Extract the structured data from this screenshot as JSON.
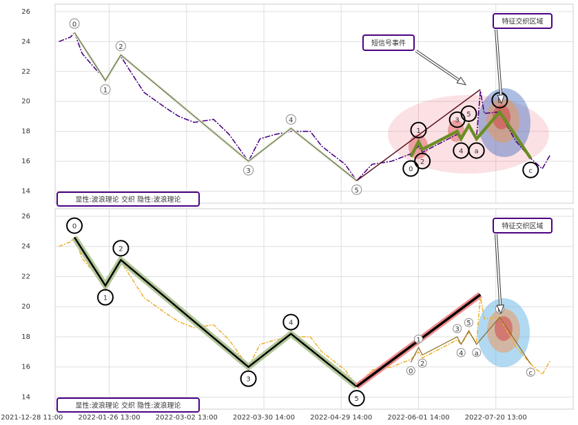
{
  "chart_data": {
    "type": "line",
    "x": [
      7,
      10,
      11,
      13,
      17,
      19,
      23,
      26,
      29,
      35,
      38,
      42,
      47,
      51,
      56,
      59,
      63,
      67,
      72,
      75,
      81,
      84,
      88,
      93,
      98,
      100,
      101,
      107,
      110,
      111,
      113,
      115,
      116,
      117,
      121,
      125,
      129,
      132,
      134
    ],
    "values": [
      24.0,
      24.3,
      24.6,
      23.2,
      22.0,
      21.5,
      23.0,
      21.8,
      20.6,
      19.5,
      19.0,
      18.6,
      18.8,
      17.8,
      16.0,
      17.5,
      17.8,
      18.0,
      18.0,
      17.0,
      15.8,
      14.7,
      15.8,
      16.0,
      16.5,
      17.0,
      16.6,
      17.4,
      17.8,
      17.5,
      18.3,
      17.6,
      20.7,
      19.2,
      19.3,
      17.4,
      16.2,
      15.5,
      16.4
    ],
    "xlim": [
      6,
      140
    ],
    "xticks": [
      {
        "value": 0,
        "label": "2021-12-28 11:00"
      },
      {
        "value": 20,
        "label": "2022-01-26 13:00"
      },
      {
        "value": 40,
        "label": "2022-03-02 13:00"
      },
      {
        "value": 60,
        "label": "2022-03-30 14:00"
      },
      {
        "value": 80,
        "label": "2022-04-29 14:00"
      },
      {
        "value": 100,
        "label": "2022-06-01 14:00"
      },
      {
        "value": 120,
        "label": "2022-07-20 13:00"
      }
    ],
    "ylim": [
      13.2,
      26.5
    ],
    "yticks": [
      14,
      16,
      18,
      20,
      22,
      24,
      26
    ],
    "grid": true,
    "waves": {
      "names": [
        "0",
        "1",
        "2",
        "3",
        "4",
        "5"
      ],
      "x": [
        11,
        19,
        23,
        56,
        67,
        84
      ],
      "values": [
        24.6,
        21.4,
        23.1,
        16.0,
        18.2,
        14.7
      ]
    },
    "short_waves": {
      "names": [
        "0",
        "1",
        "2",
        "3",
        "4",
        "5",
        "a",
        "b",
        "c"
      ],
      "x": [
        98,
        100,
        101,
        110,
        111,
        113,
        115,
        121,
        129
      ],
      "values": [
        16.3,
        17.3,
        16.8,
        18.0,
        17.5,
        18.4,
        17.5,
        19.3,
        16.2
      ]
    },
    "signal": {
      "x": [
        84,
        116
      ],
      "values": [
        14.7,
        20.8
      ]
    },
    "panels": [
      {
        "color": "#4b0082",
        "caption": "显性:波浪理论 交织 隐性:波浪理论",
        "callouts": [
          "短信号事件",
          "特征交织区域"
        ]
      },
      {
        "color": "#f0b030",
        "caption": "显性:波浪理论 交织 隐性:波浪理论",
        "callouts": [
          "特征交织区域"
        ]
      }
    ]
  }
}
